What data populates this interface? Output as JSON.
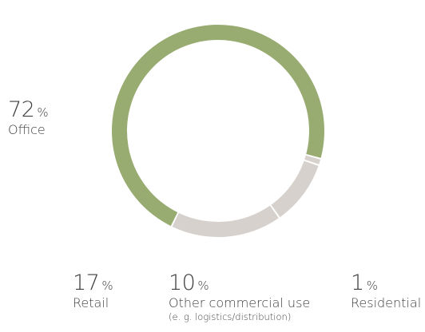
{
  "chart_data": {
    "type": "pie",
    "variant": "donut",
    "title": "",
    "percent_symbol": "%",
    "slices": [
      {
        "label": "Office",
        "value": 72,
        "note": "",
        "color": "#98ab70"
      },
      {
        "label": "Residential",
        "value": 1,
        "note": "",
        "color": "#d6d1cc"
      },
      {
        "label": "Other commercial use",
        "value": 10,
        "note": "(e. g. logistics/distribution)",
        "color": "#d6d1cc"
      },
      {
        "label": "Retail",
        "value": 17,
        "note": "",
        "color": "#d6d1cc"
      }
    ]
  }
}
